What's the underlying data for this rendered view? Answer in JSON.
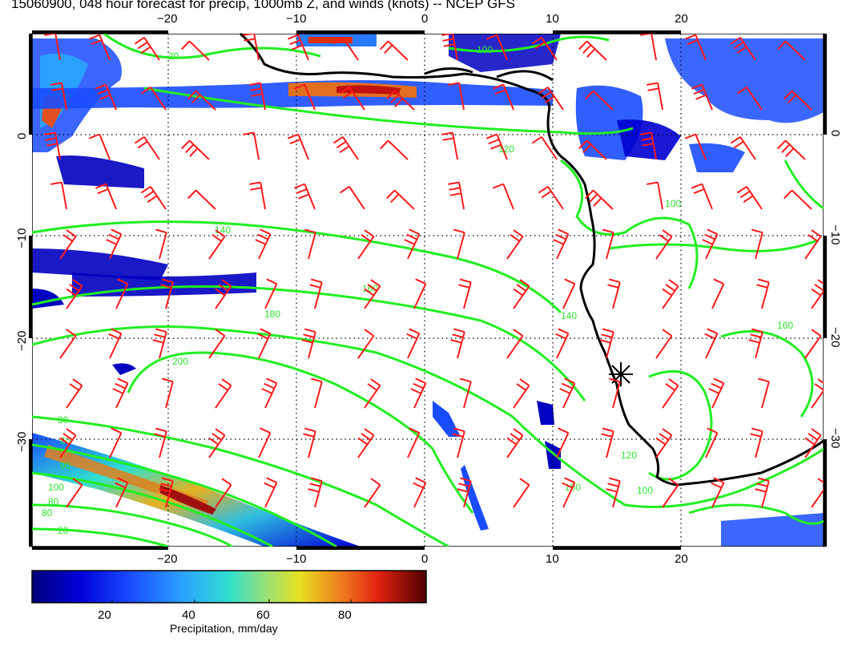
{
  "title": "15060900, 048 hour forecast for precip, 1000mb Z, and winds (knots) -- NCEP GFS",
  "axes": {
    "lon_ticks": [
      "−20",
      "−10",
      "0",
      "10",
      "20"
    ],
    "lat_ticks": [
      "0",
      "−10",
      "−20",
      "−30"
    ]
  },
  "contours": {
    "variable": "1000mb Z",
    "color": "#22ee22",
    "labels": [
      "20",
      "100",
      "120",
      "140",
      "160",
      "180",
      "200",
      "100",
      "120",
      "140",
      "160",
      "180",
      "80",
      "100",
      "90",
      "30",
      "60",
      "80",
      "20",
      "100"
    ]
  },
  "winds": {
    "variable": "winds (knots)",
    "color": "#ff1a1a"
  },
  "colorbar": {
    "title": "Precipitation, mm/day",
    "ticks": [
      "20",
      "40",
      "60",
      "80"
    ],
    "colors": [
      "#00007a",
      "#0000d8",
      "#1a4cff",
      "#2aa0ff",
      "#30e0d0",
      "#a0e070",
      "#e8e020",
      "#f08020",
      "#e02010",
      "#a00000",
      "#500000"
    ]
  },
  "marker": {
    "icon": "asterisk-station-marker"
  }
}
